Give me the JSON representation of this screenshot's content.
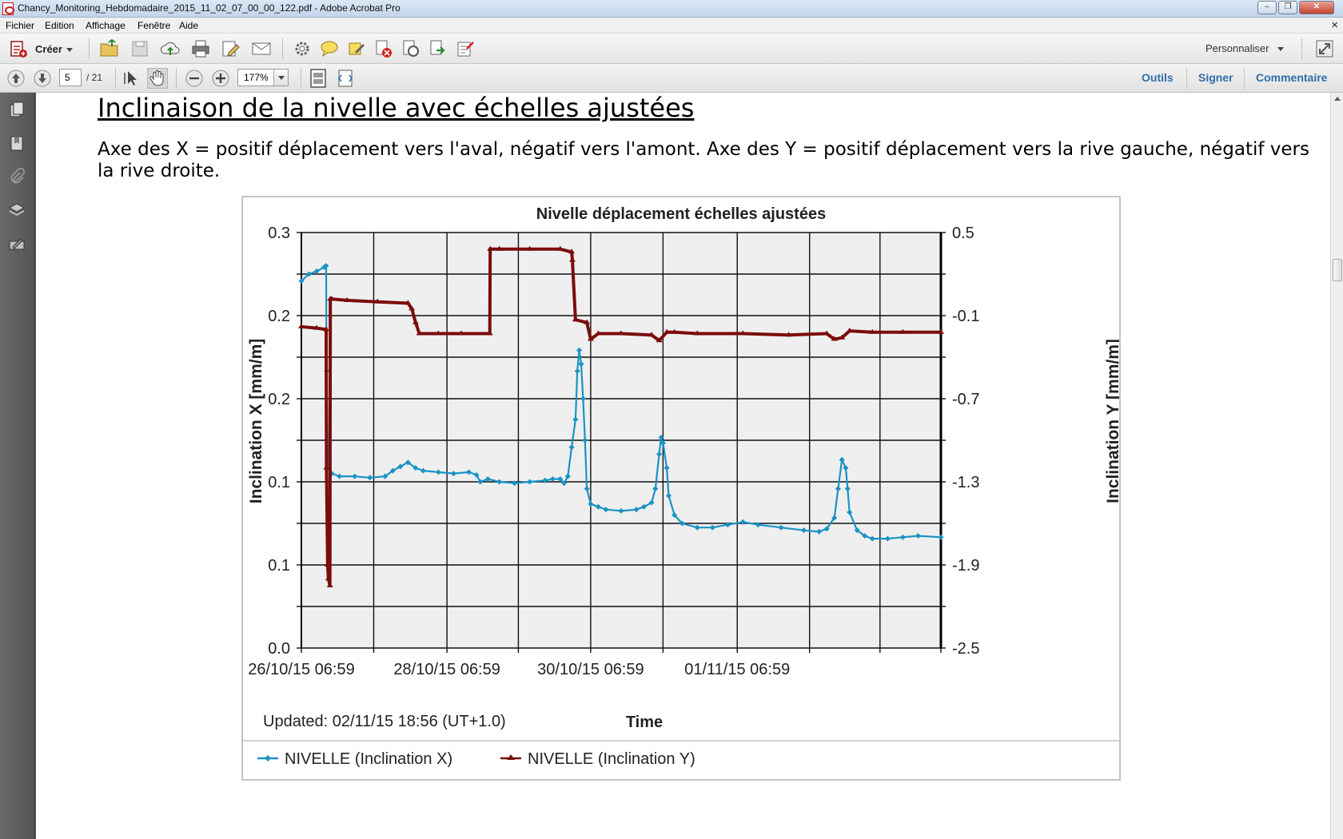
{
  "window": {
    "title": "Chancy_Monitoring_Hebdomadaire_2015_11_02_07_00_00_122.pdf - Adobe Acrobat Pro",
    "buttons": {
      "minimize": "–",
      "restore": "❐",
      "close": "✕"
    }
  },
  "menu": {
    "items": [
      "Fichier",
      "Edition",
      "Affichage",
      "Fenêtre",
      "Aide"
    ],
    "close_glyph": "×"
  },
  "toolbar": {
    "create_label": "Créer",
    "customize_label": "Personnaliser",
    "icons": [
      "open-folder-icon",
      "save-icon",
      "cloud-upload-icon",
      "print-icon",
      "edit-icon",
      "email-icon",
      "gear-icon",
      "comment-bubble-icon",
      "highlight-icon",
      "remove-icon",
      "reader-settings-icon",
      "export-icon",
      "form-icon"
    ]
  },
  "nav": {
    "page_current": "5",
    "page_total": "/ 21",
    "zoom": "177%",
    "right_links": [
      "Outils",
      "Signer",
      "Commentaire"
    ]
  },
  "document": {
    "heading": "Inclinaison de la nivelle avec échelles ajustées ",
    "paragraph": "Axe des X = positif déplacement vers l'aval, négatif vers l'amont. Axe des Y = positif déplacement vers la rive gauche, négatif vers la rive droite."
  },
  "chart_data": {
    "type": "line",
    "title": "Nivelle déplacement échelles ajustées",
    "xlabel": "Time",
    "ylabel": "Inclination X [mm/m]",
    "y2label": "Inclination Y [mm/m]",
    "updated_text": "Updated: 02/11/15 18:56 (UT+1.0)",
    "x_ticks": [
      "26/10/15 06:59",
      "28/10/15 06:59",
      "30/10/15 06:59",
      "01/11/15 06:59"
    ],
    "x_range_hours": [
      0,
      168
    ],
    "y_left_ticks": [
      "0.3",
      "0.2",
      "0.2",
      "0.1",
      "0.1",
      "0.0"
    ],
    "y_left_range": [
      0.0,
      0.3
    ],
    "y_right_ticks": [
      "0.5",
      "-0.1",
      "-0.7",
      "-1.3",
      "-1.9",
      "-2.5"
    ],
    "y_right_range": [
      -2.5,
      0.5
    ],
    "grid": true,
    "legend_position": "bottom",
    "series": [
      {
        "name": "NIVELLE (Inclination X)",
        "axis": "left",
        "color": "#1b93c4",
        "marker": "diamond",
        "points": [
          [
            0,
            0.265
          ],
          [
            2,
            0.27
          ],
          [
            4,
            0.272
          ],
          [
            6,
            0.275
          ],
          [
            6.5,
            0.276
          ],
          [
            6.6,
            0.2
          ],
          [
            7,
            0.13
          ],
          [
            8,
            0.126
          ],
          [
            10,
            0.124
          ],
          [
            14,
            0.124
          ],
          [
            18,
            0.123
          ],
          [
            22,
            0.124
          ],
          [
            24,
            0.128
          ],
          [
            26,
            0.131
          ],
          [
            28,
            0.134
          ],
          [
            30,
            0.13
          ],
          [
            32,
            0.128
          ],
          [
            36,
            0.127
          ],
          [
            40,
            0.126
          ],
          [
            44,
            0.127
          ],
          [
            46,
            0.125
          ],
          [
            47,
            0.12
          ],
          [
            49,
            0.122
          ],
          [
            52,
            0.12
          ],
          [
            56,
            0.119
          ],
          [
            60,
            0.12
          ],
          [
            64,
            0.121
          ],
          [
            66,
            0.122
          ],
          [
            68,
            0.122
          ],
          [
            69,
            0.119
          ],
          [
            70,
            0.124
          ],
          [
            71,
            0.145
          ],
          [
            72,
            0.165
          ],
          [
            72.5,
            0.2
          ],
          [
            73,
            0.215
          ],
          [
            73.5,
            0.205
          ],
          [
            74,
            0.18
          ],
          [
            74.5,
            0.15
          ],
          [
            75,
            0.115
          ],
          [
            76,
            0.104
          ],
          [
            78,
            0.102
          ],
          [
            80,
            0.1
          ],
          [
            84,
            0.099
          ],
          [
            88,
            0.1
          ],
          [
            90,
            0.102
          ],
          [
            92,
            0.105
          ],
          [
            93,
            0.115
          ],
          [
            94,
            0.14
          ],
          [
            94.5,
            0.152
          ],
          [
            95,
            0.148
          ],
          [
            96,
            0.13
          ],
          [
            96.5,
            0.11
          ],
          [
            98,
            0.096
          ],
          [
            100,
            0.09
          ],
          [
            104,
            0.087
          ],
          [
            108,
            0.087
          ],
          [
            112,
            0.089
          ],
          [
            116,
            0.091
          ],
          [
            120,
            0.089
          ],
          [
            126,
            0.087
          ],
          [
            132,
            0.085
          ],
          [
            136,
            0.084
          ],
          [
            138,
            0.086
          ],
          [
            140,
            0.094
          ],
          [
            141,
            0.115
          ],
          [
            142,
            0.136
          ],
          [
            143,
            0.13
          ],
          [
            143.5,
            0.115
          ],
          [
            144,
            0.098
          ],
          [
            146,
            0.085
          ],
          [
            148,
            0.081
          ],
          [
            150,
            0.079
          ],
          [
            154,
            0.079
          ],
          [
            158,
            0.08
          ],
          [
            162,
            0.081
          ],
          [
            168,
            0.08
          ]
        ]
      },
      {
        "name": "NIVELLE (Inclination Y)",
        "axis": "right",
        "color": "#7b0c0c",
        "marker": "triangle",
        "points": [
          [
            0,
            -0.18
          ],
          [
            4,
            -0.19
          ],
          [
            6.5,
            -0.2
          ],
          [
            6.6,
            -1.2
          ],
          [
            6.9,
            -1.9
          ],
          [
            7.1,
            -2.0
          ],
          [
            7.5,
            -2.05
          ],
          [
            7.6,
            0.02
          ],
          [
            8,
            0.02
          ],
          [
            12,
            0.01
          ],
          [
            20,
            0.0
          ],
          [
            28,
            -0.01
          ],
          [
            29,
            -0.05
          ],
          [
            30,
            -0.15
          ],
          [
            31,
            -0.23
          ],
          [
            36,
            -0.23
          ],
          [
            42,
            -0.23
          ],
          [
            49.5,
            -0.23
          ],
          [
            49.6,
            0.38
          ],
          [
            52,
            0.38
          ],
          [
            60,
            0.38
          ],
          [
            68,
            0.38
          ],
          [
            71,
            0.36
          ],
          [
            71.2,
            0.3
          ],
          [
            72,
            -0.13
          ],
          [
            75,
            -0.15
          ],
          [
            76,
            -0.27
          ],
          [
            78,
            -0.23
          ],
          [
            84,
            -0.23
          ],
          [
            92,
            -0.24
          ],
          [
            94,
            -0.28
          ],
          [
            96,
            -0.22
          ],
          [
            98,
            -0.22
          ],
          [
            104,
            -0.23
          ],
          [
            116,
            -0.23
          ],
          [
            128,
            -0.24
          ],
          [
            138,
            -0.23
          ],
          [
            140,
            -0.27
          ],
          [
            142,
            -0.26
          ],
          [
            144,
            -0.21
          ],
          [
            150,
            -0.22
          ],
          [
            158,
            -0.22
          ],
          [
            168,
            -0.22
          ]
        ]
      }
    ]
  }
}
